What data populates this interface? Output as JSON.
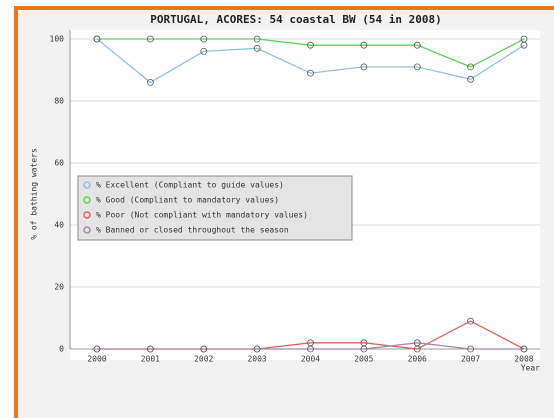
{
  "chart_data": {
    "type": "line",
    "title": "PORTUGAL, ACORES: 54 coastal BW (54 in 2008)",
    "y_label": "% of bathing waters",
    "x_label": "Year",
    "categories": [
      "2000",
      "2001",
      "2002",
      "2003",
      "2004",
      "2005",
      "2006",
      "2007",
      "2008"
    ],
    "series": [
      {
        "name": "% Excellent (Compliant to guide values)",
        "color": "#8fc4d8",
        "values": [
          100,
          86,
          96,
          97,
          89,
          91,
          91,
          87,
          98
        ]
      },
      {
        "name": "% Good (Compliant to mandatory values)",
        "color": "#5ad45a",
        "values": [
          100,
          100,
          100,
          100,
          98,
          98,
          98,
          91,
          100
        ]
      },
      {
        "name": "% Poor (Not compliant with mandatory values)",
        "color": "#e06060",
        "values": [
          0,
          0,
          0,
          0,
          2,
          2,
          0,
          9,
          0
        ]
      },
      {
        "name": "% Banned or closed throughout the season",
        "color": "#a08aa8",
        "values": [
          0,
          0,
          0,
          0,
          0,
          0,
          2,
          0,
          0
        ]
      }
    ],
    "ylim": [
      0,
      100
    ],
    "yticks": [
      0,
      20,
      40,
      60,
      80,
      100
    ],
    "grid": true
  }
}
